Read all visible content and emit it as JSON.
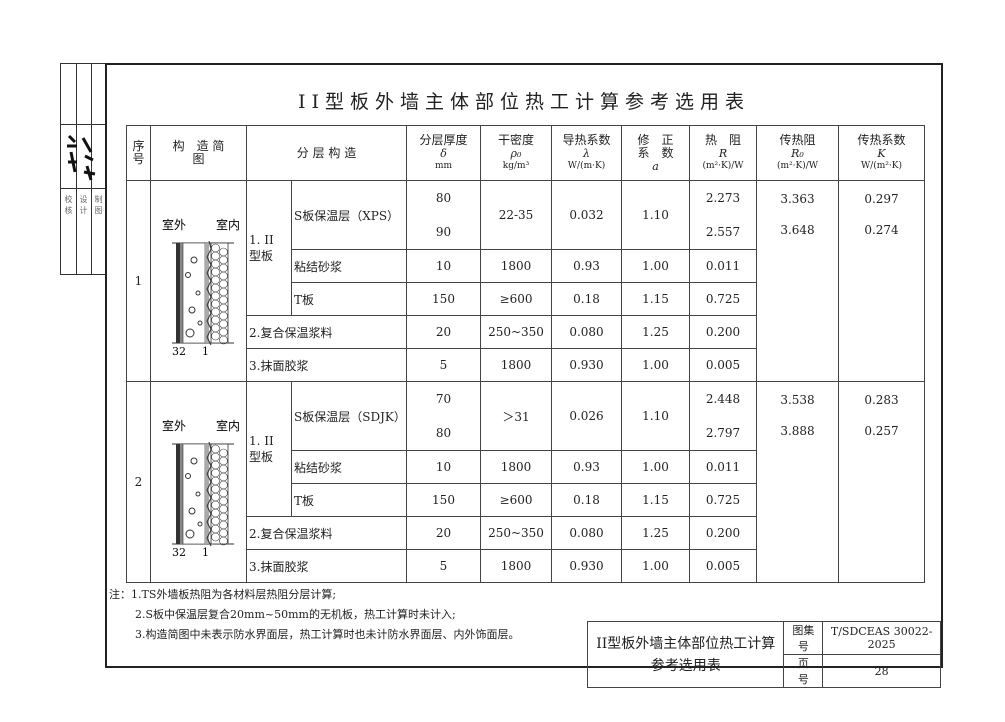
{
  "sidebar": {
    "signature_text": "签名",
    "roles": [
      "校核",
      "设计",
      "制图"
    ]
  },
  "title": "II型板外墙主体部位热工计算参考选用表",
  "headers": {
    "seq": "序号",
    "diagram": "构　造 简　图",
    "layers": "分 层 构 造",
    "thickness": {
      "label": "分层厚度",
      "sym": "δ",
      "unit": "mm"
    },
    "density": {
      "label": "干密度",
      "sym": "ρ₀",
      "unit": "kg/m³"
    },
    "conductivity": {
      "label": "导热系数",
      "sym": "λ",
      "unit": "W/(m·K)"
    },
    "correction": {
      "label": "修　正 系　数",
      "sym": "a"
    },
    "resistance": {
      "label": "热　阻",
      "sym": "R",
      "unit": "(m²·K)/W"
    },
    "total_resistance": {
      "label": "传热阻",
      "sym": "R₀",
      "unit": "(m²·K)/W"
    },
    "transfer": {
      "label": "传热系数",
      "sym": "K",
      "unit": "W/(m²·K)"
    }
  },
  "groups": [
    {
      "seq": "1",
      "outside": "室外",
      "inside": "室内",
      "dim_left": "32",
      "dim_right": "1",
      "panel": "1. II型板",
      "rows": [
        {
          "name": "S板保温层（XPS）",
          "thickness": [
            "80",
            "90"
          ],
          "density": "22-35",
          "lambda": "0.032",
          "a": "1.10",
          "R": [
            "2.273",
            "2.557"
          ]
        },
        {
          "name": "粘结砂浆",
          "thickness": "10",
          "density": "1800",
          "lambda": "0.93",
          "a": "1.00",
          "R": "0.011"
        },
        {
          "name": "T板",
          "thickness": "150",
          "density": "≥600",
          "lambda": "0.18",
          "a": "1.15",
          "R": "0.725"
        },
        {
          "name": "2.复合保温浆料",
          "thickness": "20",
          "density": "250~350",
          "lambda": "0.080",
          "a": "1.25",
          "R": "0.200"
        },
        {
          "name": "3.抹面胶浆",
          "thickness": "5",
          "density": "1800",
          "lambda": "0.930",
          "a": "1.00",
          "R": "0.005"
        }
      ],
      "R0": [
        "3.363",
        "3.648"
      ],
      "K": [
        "0.297",
        "0.274"
      ]
    },
    {
      "seq": "2",
      "outside": "室外",
      "inside": "室内",
      "dim_left": "32",
      "dim_right": "1",
      "panel": "1. II型板",
      "rows": [
        {
          "name": "S板保温层（SDJK）",
          "thickness": [
            "70",
            "80"
          ],
          "density": "＞31",
          "lambda": "0.026",
          "a": "1.10",
          "R": [
            "2.448",
            "2.797"
          ]
        },
        {
          "name": "粘结砂浆",
          "thickness": "10",
          "density": "1800",
          "lambda": "0.93",
          "a": "1.00",
          "R": "0.011"
        },
        {
          "name": "T板",
          "thickness": "150",
          "density": "≥600",
          "lambda": "0.18",
          "a": "1.15",
          "R": "0.725"
        },
        {
          "name": "2.复合保温浆料",
          "thickness": "20",
          "density": "250~350",
          "lambda": "0.080",
          "a": "1.25",
          "R": "0.200"
        },
        {
          "name": "3.抹面胶浆",
          "thickness": "5",
          "density": "1800",
          "lambda": "0.930",
          "a": "1.00",
          "R": "0.005"
        }
      ],
      "R0": [
        "3.538",
        "3.888"
      ],
      "K": [
        "0.283",
        "0.257"
      ]
    }
  ],
  "notes": [
    "注：1.TS外墙板热阻为各材料层热阻分层计算;",
    "2.S板中保温层复合20mm~50mm的无机板，热工计算时未计入;",
    "3.构造简图中未表示防水界面层，热工计算时也未计防水界面层、内外饰面层。"
  ],
  "title_block": {
    "title_line1": "II型板外墙主体部位热工计算",
    "title_line2": "参考选用表",
    "atlas_label": "图集号",
    "atlas_no": "T/SDCEAS 30022-2025",
    "page_label": "页　号",
    "page_no": "28"
  }
}
